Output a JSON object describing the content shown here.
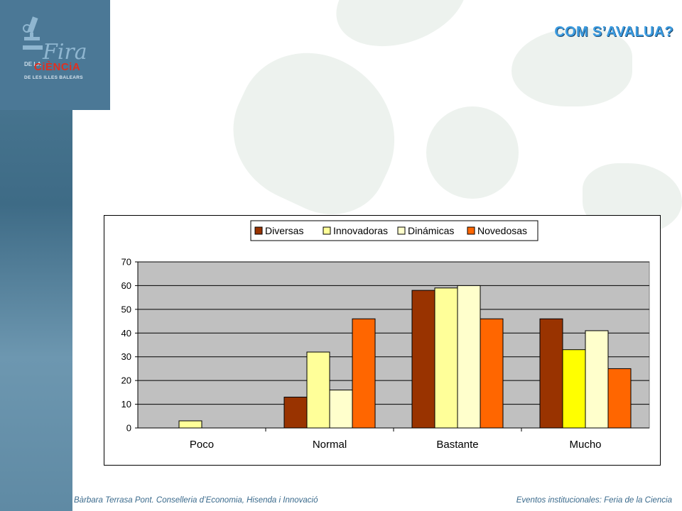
{
  "slide": {
    "title": "COM S’AVALUA?",
    "footer_left": "Bàrbara Terrasa Pont. Conselleria d’Economia, Hisenda i Innovació",
    "footer_right": "Eventos institucionales: Feria de la Ciencia"
  },
  "logo": {
    "fira": "Fira",
    "de": "DE LA",
    "ciencia": "CiÈNCiA",
    "balears": "DE LES ILLES BALEARS"
  },
  "colors": {
    "plot_bg": "#c0c0c0",
    "series": [
      "#993300",
      "#ffff99",
      "#ffffcc",
      "#ff6600"
    ],
    "highlight_bar": "#ffff00"
  },
  "chart_data": {
    "type": "bar",
    "title": "",
    "xlabel": "",
    "ylabel": "",
    "categories": [
      "Poco",
      "Normal",
      "Bastante",
      "Mucho"
    ],
    "series": [
      {
        "name": "Diversas",
        "values": [
          0,
          13,
          58,
          46
        ]
      },
      {
        "name": "Innovadoras",
        "values": [
          3,
          32,
          59,
          33
        ]
      },
      {
        "name": "Dinámicas",
        "values": [
          0,
          16,
          60,
          41
        ]
      },
      {
        "name": "Novedosas",
        "values": [
          0,
          46,
          46,
          25
        ]
      }
    ],
    "ylim": [
      0,
      70
    ],
    "yticks": [
      0,
      10,
      20,
      30,
      40,
      50,
      60,
      70
    ],
    "grid": true,
    "legend": "top-center"
  }
}
